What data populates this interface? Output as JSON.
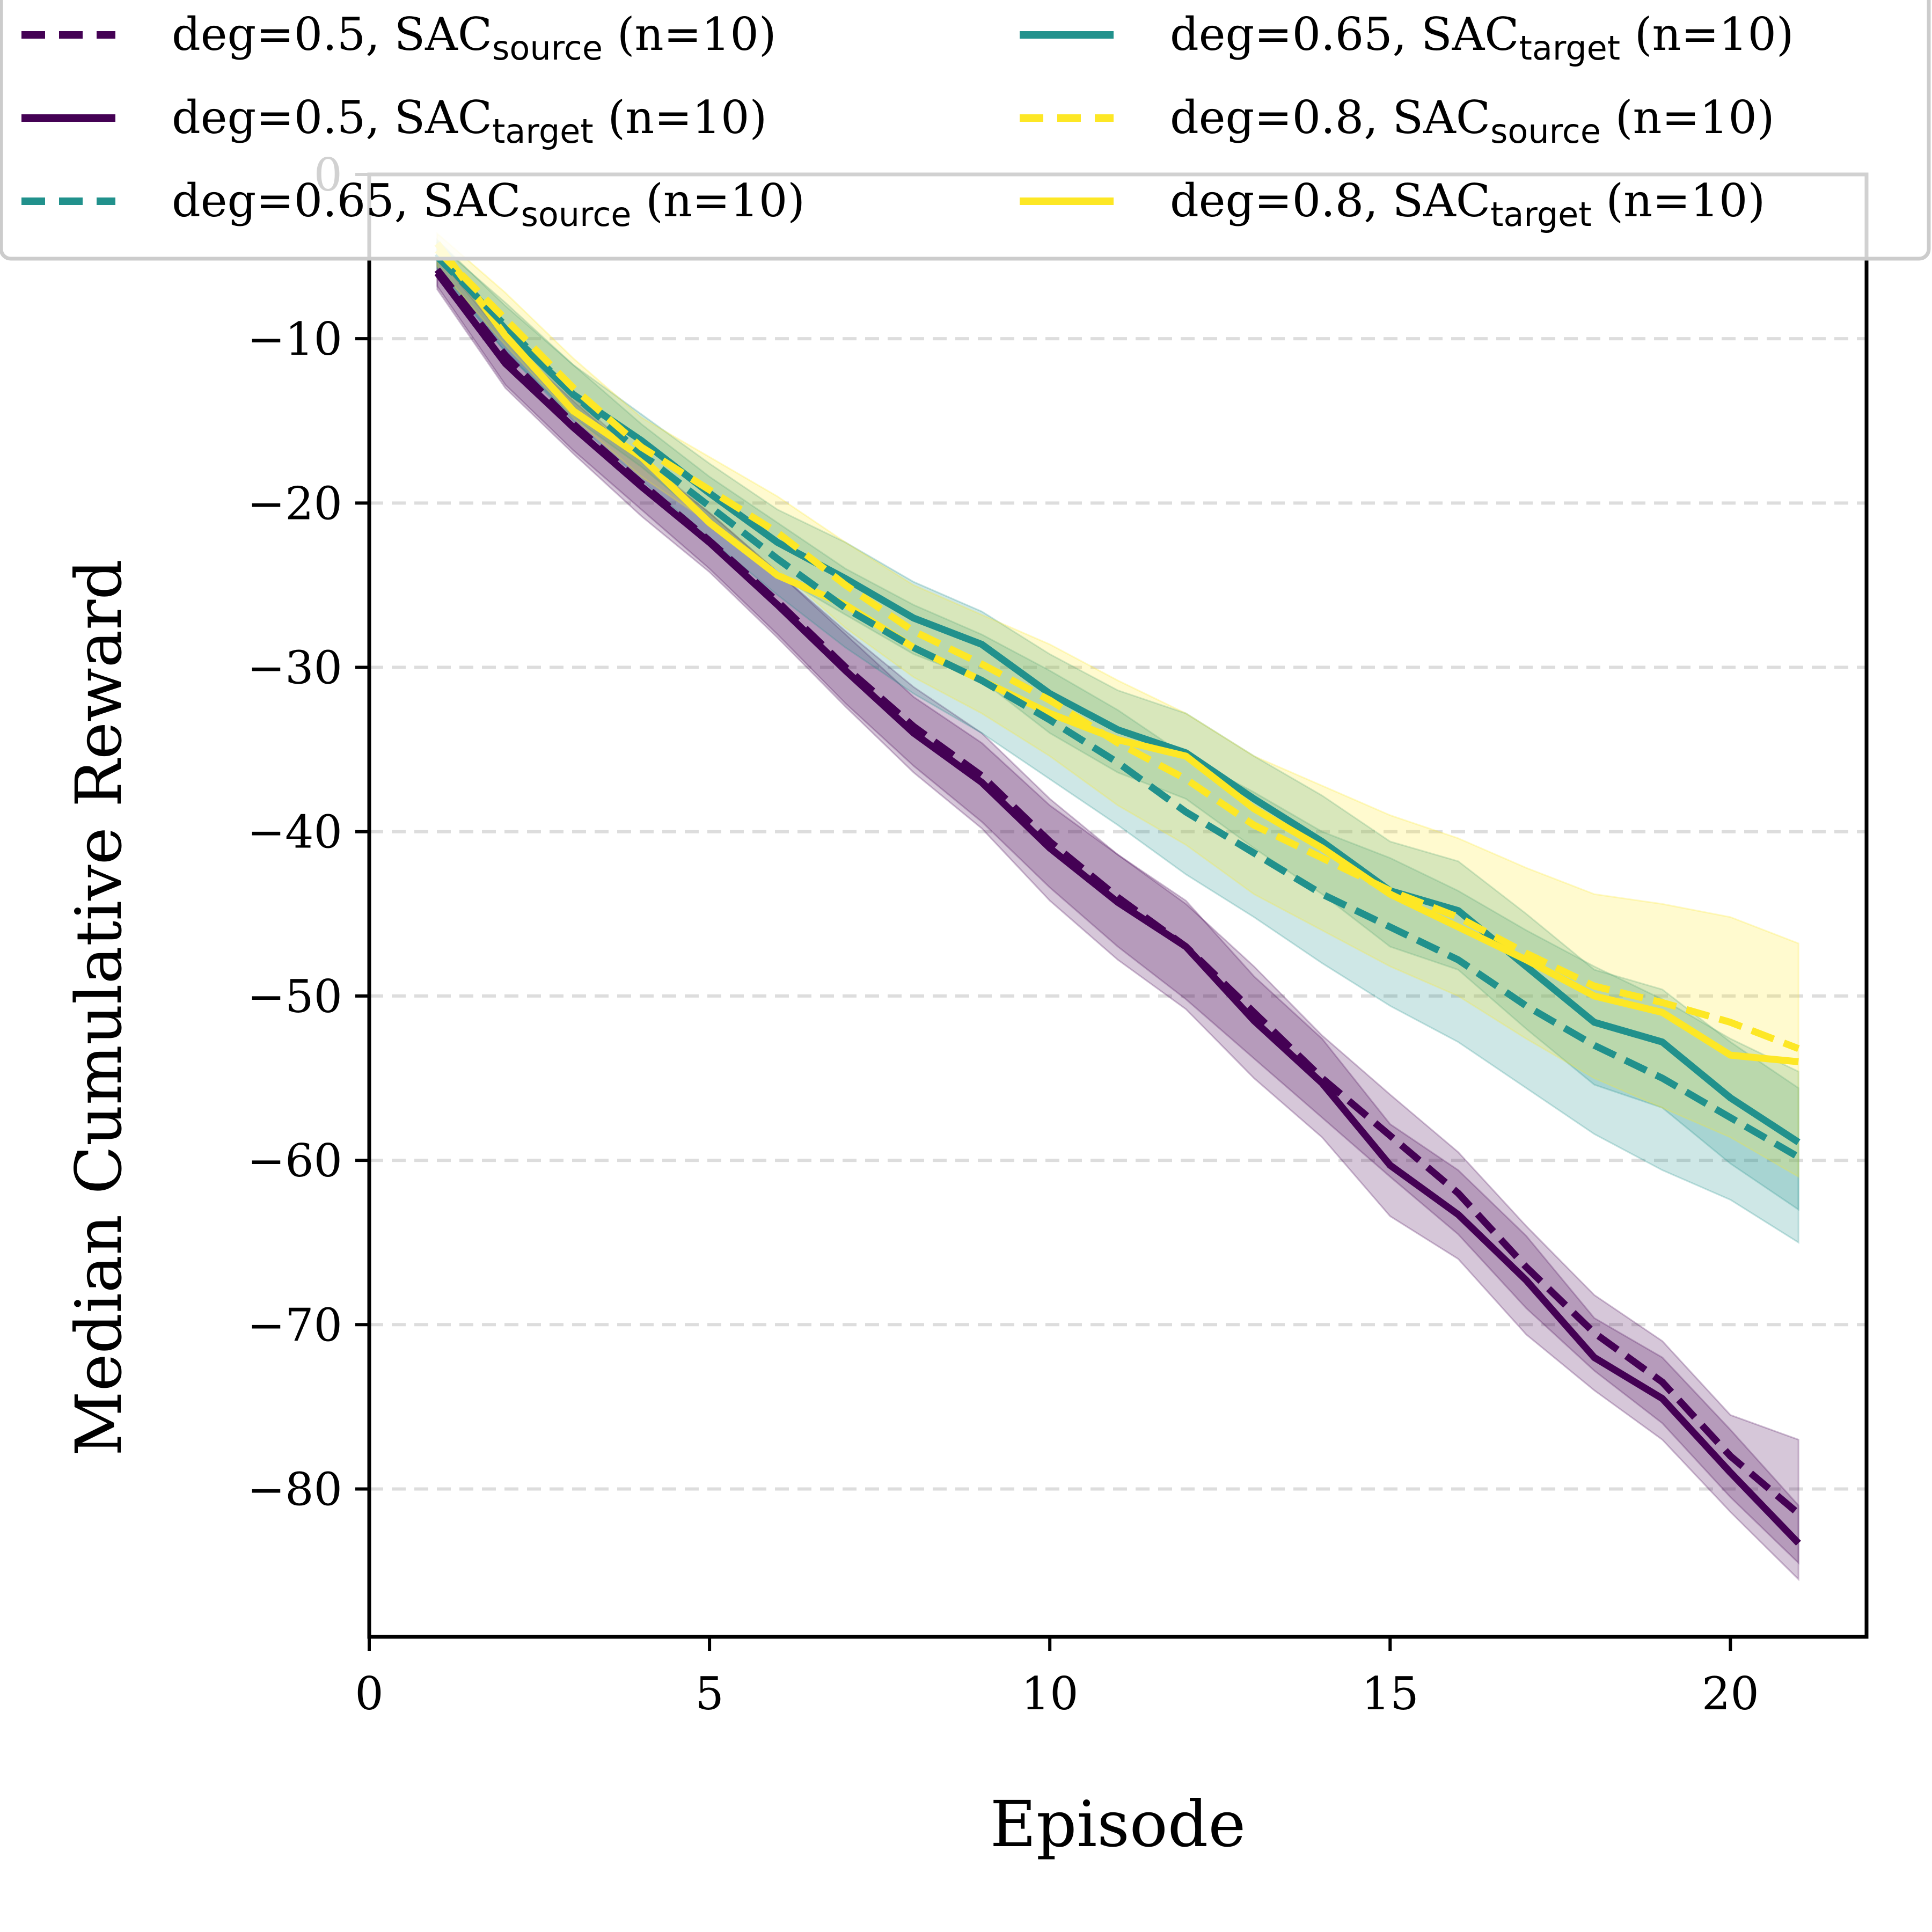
{
  "chart_data": {
    "type": "line",
    "title": "",
    "xlabel": "Episode",
    "ylabel": "Median Cumulative Reward",
    "xlim": [
      0,
      22
    ],
    "ylim": [
      -89,
      0
    ],
    "xticks": [
      0,
      5,
      10,
      15,
      20
    ],
    "yticks": [
      0,
      -10,
      -20,
      -30,
      -40,
      -50,
      -60,
      -70,
      -80
    ],
    "ytick_labels": [
      "0",
      "−10",
      "−20",
      "−30",
      "−40",
      "−50",
      "−60",
      "−70",
      "−80"
    ],
    "grid": "horizontal dashed",
    "legend_position": "top",
    "x": [
      1,
      2,
      3,
      4,
      5,
      6,
      7,
      8,
      9,
      10,
      11,
      12,
      13,
      14,
      15,
      16,
      17,
      18,
      19,
      20,
      21
    ],
    "series": [
      {
        "name": "deg=0.5, SAC_source (n=10)",
        "label_main": "deg=0.5, SAC",
        "label_sub": "source",
        "label_tail": " (n=10)",
        "color": "#440154",
        "style": "dashed",
        "values": [
          -5.8,
          -11,
          -15.2,
          -18.8,
          -22.3,
          -26,
          -30,
          -33.6,
          -36.6,
          -40.6,
          -44,
          -47,
          -51,
          -55,
          -58.5,
          -62,
          -66.5,
          -70.5,
          -73.5,
          -78,
          -81.5
        ],
        "band_low": [
          -6.8,
          -12.8,
          -16.8,
          -20.4,
          -24,
          -28,
          -32.2,
          -36,
          -39.4,
          -43.4,
          -47,
          -50.2,
          -53.8,
          -57.4,
          -61,
          -64.5,
          -69,
          -72.8,
          -76,
          -80.5,
          -84.5
        ],
        "band_high": [
          -4.8,
          -9.5,
          -13.6,
          -17.2,
          -20.6,
          -24.2,
          -27.8,
          -31.2,
          -34,
          -38,
          -41.4,
          -44.4,
          -48.2,
          -52.4,
          -56,
          -59.5,
          -64,
          -68.2,
          -71,
          -75.5,
          -77
        ]
      },
      {
        "name": "deg=0.5, SAC_target (n=10)",
        "label_main": "deg=0.5, SAC",
        "label_sub": "target",
        "label_tail": " (n=10)",
        "color": "#440154",
        "style": "solid",
        "values": [
          -6,
          -11.5,
          -15.4,
          -19,
          -22.4,
          -26.2,
          -30.2,
          -34,
          -37,
          -41,
          -44.3,
          -47,
          -51.5,
          -55.3,
          -60.3,
          -63.3,
          -67.3,
          -72,
          -74.5,
          -79,
          -83.3
        ],
        "band_low": [
          -7,
          -13,
          -17,
          -20.8,
          -24.2,
          -28.2,
          -32.4,
          -36.4,
          -39.8,
          -44.2,
          -47.8,
          -50.8,
          -55,
          -58.6,
          -63.4,
          -66,
          -70.6,
          -74,
          -77,
          -81.4,
          -85.5
        ],
        "band_high": [
          -5,
          -10,
          -13.8,
          -17.4,
          -20.6,
          -24.2,
          -28,
          -31.8,
          -34.6,
          -38.4,
          -41.4,
          -44.2,
          -48.8,
          -52.6,
          -57.8,
          -60.6,
          -64.6,
          -69.6,
          -72,
          -76.4,
          -81
        ]
      },
      {
        "name": "deg=0.65, SAC_source (n=10)",
        "label_main": "deg=0.65, SAC",
        "label_sub": "source",
        "label_tail": " (n=10)",
        "color": "#21918c",
        "style": "dashed",
        "values": [
          -5,
          -9.2,
          -13.4,
          -17,
          -20.2,
          -23.4,
          -26.4,
          -28.8,
          -30.8,
          -33.2,
          -35.8,
          -38.8,
          -41.3,
          -43.8,
          -45.8,
          -47.8,
          -50.6,
          -53,
          -55,
          -57.4,
          -59.8
        ],
        "band_low": [
          -5.8,
          -10.8,
          -15,
          -18.6,
          -22.2,
          -25.6,
          -28.8,
          -31.6,
          -34,
          -36.8,
          -39.6,
          -42.6,
          -45.2,
          -48,
          -50.6,
          -52.8,
          -55.6,
          -58.4,
          -60.6,
          -62.4,
          -65
        ],
        "band_high": [
          -4.2,
          -7.8,
          -11.6,
          -15.2,
          -18.4,
          -21.2,
          -24,
          -26.2,
          -28,
          -30.2,
          -32.6,
          -35.4,
          -37.6,
          -40,
          -41.6,
          -43.6,
          -46,
          -48.2,
          -50.2,
          -52.6,
          -54.6
        ]
      },
      {
        "name": "deg=0.65, SAC_target (n=10)",
        "label_main": "deg=0.65, SAC",
        "label_sub": "target",
        "label_tail": " (n=10)",
        "color": "#21918c",
        "style": "solid",
        "values": [
          -4.8,
          -9.4,
          -13.4,
          -16.2,
          -19.4,
          -22.4,
          -24.6,
          -27,
          -28.6,
          -31.6,
          -33.8,
          -35.2,
          -38,
          -40.6,
          -43.6,
          -44.8,
          -48.2,
          -51.6,
          -52.8,
          -56.2,
          -58.9
        ],
        "band_low": [
          -5.6,
          -10.8,
          -14.8,
          -17.8,
          -21.2,
          -24.4,
          -26.8,
          -29.2,
          -30.8,
          -34,
          -36.4,
          -38,
          -41,
          -43.8,
          -47,
          -48.4,
          -52,
          -55.4,
          -56.8,
          -60.2,
          -63
        ],
        "band_high": [
          -4,
          -8,
          -11.6,
          -14.6,
          -17.6,
          -20.4,
          -22.4,
          -24.8,
          -26.6,
          -29.2,
          -31.4,
          -32.8,
          -35.4,
          -37.8,
          -40.6,
          -41.8,
          -45,
          -48.4,
          -49.6,
          -52.8,
          -55.6
        ]
      },
      {
        "name": "deg=0.8, SAC_source (n=10)",
        "label_main": "deg=0.8, SAC",
        "label_sub": "source",
        "label_tail": " (n=10)",
        "color": "#fde725",
        "style": "dashed",
        "values": [
          -4.6,
          -8.8,
          -13,
          -16.6,
          -19.2,
          -21.8,
          -25,
          -27.8,
          -29.8,
          -32,
          -34.6,
          -36.8,
          -39.6,
          -41.6,
          -43.6,
          -45.2,
          -47.4,
          -49.4,
          -50.4,
          -51.6,
          -53.2
        ],
        "band_low": [
          -5.6,
          -10.4,
          -14.8,
          -18.4,
          -21.2,
          -24,
          -27.6,
          -30.6,
          -32.8,
          -35.4,
          -38.4,
          -40.8,
          -43.8,
          -46,
          -48.2,
          -50,
          -52.6,
          -55,
          -56.8,
          -58.6,
          -61
        ],
        "band_high": [
          -3.6,
          -7.2,
          -11.2,
          -14.8,
          -17.2,
          -19.6,
          -22.4,
          -25,
          -26.8,
          -28.6,
          -30.8,
          -32.8,
          -35.4,
          -37.2,
          -39,
          -40.4,
          -42.2,
          -43.8,
          -44.4,
          -45.2,
          -46.8
        ]
      },
      {
        "name": "deg=0.8, SAC_target (n=10)",
        "label_main": "deg=0.8, SAC",
        "label_sub": "target",
        "label_tail": " (n=10)",
        "color": "#fde725",
        "style": "solid",
        "values": [
          -4.2,
          -9.8,
          -14.4,
          -17.2,
          -21.2,
          -24.4,
          -26.2,
          -28.8,
          -30.8,
          -32.8,
          -34.4,
          -35.4,
          -38.6,
          -41,
          -43.8,
          -45.8,
          -47.8,
          -50,
          -51,
          -53.6,
          -54
        ]
      }
    ],
    "legend": {
      "columns": 2,
      "order": [
        0,
        1,
        2,
        3,
        4,
        5
      ]
    }
  }
}
